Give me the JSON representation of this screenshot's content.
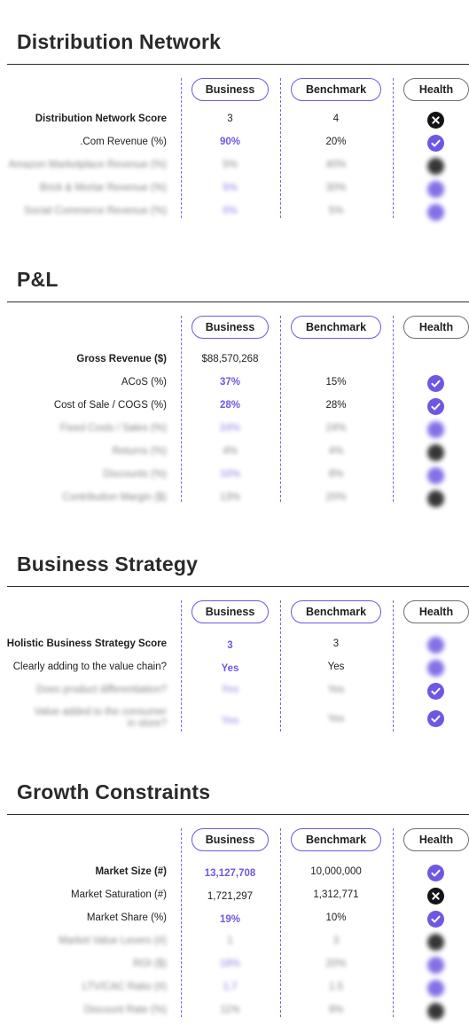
{
  "columns": {
    "business": "Business",
    "benchmark": "Benchmark",
    "health": "Health"
  },
  "sections": [
    {
      "title": "Distribution Network",
      "rows": [
        {
          "label": "Distribution Network Score",
          "business": "3",
          "benchmark": "4",
          "health": "x-icon"
        },
        {
          "label": ".Com Revenue (%)",
          "business": "90%",
          "benchmark": "20%",
          "health": "check-icon"
        },
        {
          "label": "Amazon Marketplace Revenue (%)",
          "business": "5%",
          "benchmark": "40%",
          "health": "x-icon"
        },
        {
          "label": "Brick & Mortar Revenue (%)",
          "business": "5%",
          "benchmark": "30%",
          "health": "check-icon"
        },
        {
          "label": "Social Commerce Revenue (%)",
          "business": "0%",
          "benchmark": "5%",
          "health": "check-icon"
        }
      ]
    },
    {
      "title": "P&L",
      "rows": [
        {
          "label": "Gross Revenue ($)",
          "business": "$88,570,268",
          "benchmark": "",
          "health": ""
        },
        {
          "label": "ACoS (%)",
          "business": "37%",
          "benchmark": "15%",
          "health": "check-icon"
        },
        {
          "label": "Cost of Sale / COGS (%)",
          "business": "28%",
          "benchmark": "28%",
          "health": "check-icon"
        },
        {
          "label": "Fixed Costs / Sales (%)",
          "business": "24%",
          "benchmark": "24%",
          "health": "check-icon"
        },
        {
          "label": "Returns (%)",
          "business": "4%",
          "benchmark": "4%",
          "health": "x-icon"
        },
        {
          "label": "Discounts (%)",
          "business": "10%",
          "benchmark": "8%",
          "health": "check-icon"
        },
        {
          "label": "Contribution Margin ($)",
          "business": "13%",
          "benchmark": "20%",
          "health": "x-icon"
        }
      ]
    },
    {
      "title": "Business Strategy",
      "rows": [
        {
          "label": "Holistic Business Strategy Score",
          "business": "3",
          "benchmark": "3",
          "health": "check-icon"
        },
        {
          "label": "Clearly adding to the value chain?",
          "business": "Yes",
          "benchmark": "Yes",
          "health": "check-icon"
        },
        {
          "label": "Does product differentiation?",
          "business": "Yes",
          "benchmark": "Yes",
          "health": "check-icon"
        },
        {
          "label": "Value added to the consumer in store?",
          "business": "Yes",
          "benchmark": "Yes",
          "health": "check-icon"
        }
      ]
    },
    {
      "title": "Growth Constraints",
      "rows": [
        {
          "label": "Market Size (#)",
          "business": "13,127,708",
          "benchmark": "10,000,000",
          "health": "check-icon"
        },
        {
          "label": "Market Saturation (#)",
          "business": "1,721,297",
          "benchmark": "1,312,771",
          "health": "x-icon"
        },
        {
          "label": "Market Share (%)",
          "business": "19%",
          "benchmark": "10%",
          "health": "check-icon"
        },
        {
          "label": "Market Value Levers (#)",
          "business": "1",
          "benchmark": "3",
          "health": "x-icon"
        },
        {
          "label": "ROI ($)",
          "business": "18%",
          "benchmark": "20%",
          "health": "check-icon"
        },
        {
          "label": "LTV/CAC Ratio (#)",
          "business": "1.7",
          "benchmark": "1.5",
          "health": "check-icon"
        },
        {
          "label": "Discount Rate (%)",
          "business": "11%",
          "benchmark": "9%",
          "health": "x-icon"
        }
      ]
    }
  ]
}
